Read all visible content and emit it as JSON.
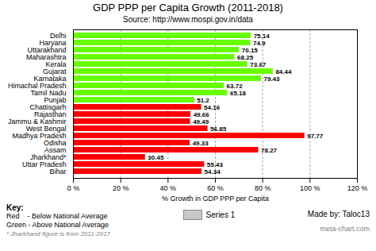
{
  "chart_data": {
    "type": "bar",
    "orientation": "horizontal",
    "title": "GDP PPP per Capita Growth (2011-2018)",
    "subtitle": "Source: http://www.mospi.gov.in/data",
    "xlabel": "% Growth in GDP PPP per Capita",
    "categories": [
      "Delhi",
      "Haryana",
      "Uttarakhand",
      "Maharashtra",
      "Kerala",
      "Gujarat",
      "Karnataka",
      "Himachal Pradesh",
      "Tamil Nadu",
      "Punjab",
      "Chattisgarh",
      "Rajasthan",
      "Jammu & Kashmir",
      "West Bengal",
      "Madhya Pradesh",
      "Odisha",
      "Assam",
      "Jharkhand*",
      "Uttar Pradesh",
      "Bihar"
    ],
    "series": [
      {
        "name": "Series 1",
        "color": "#c8c8c8",
        "colors": [
          "#66ff00",
          "#66ff00",
          "#66ff00",
          "#66ff00",
          "#66ff00",
          "#66ff00",
          "#66ff00",
          "#66ff00",
          "#66ff00",
          "#66ff00",
          "#ff0000",
          "#ff0000",
          "#ff0000",
          "#ff0000",
          "#ff0000",
          "#ff0000",
          "#ff0000",
          "#ff0000",
          "#ff0000",
          "#ff0000"
        ],
        "values": [
          75.14,
          74.9,
          70.15,
          68.25,
          73.67,
          84.44,
          79.43,
          63.72,
          65.18,
          51.2,
          54.16,
          49.66,
          49.49,
          56.85,
          97.77,
          49.33,
          78.27,
          30.45,
          55.43,
          54.34
        ]
      }
    ],
    "xlim": [
      0,
      120
    ],
    "xticks": [
      {
        "value": 0,
        "label": "0 %"
      },
      {
        "value": 20,
        "label": "20 %"
      },
      {
        "value": 40,
        "label": "40 %"
      },
      {
        "value": 60,
        "label": "60 %"
      },
      {
        "value": 80,
        "label": "80 %"
      },
      {
        "value": 100,
        "label": "100 %"
      },
      {
        "value": 120,
        "label": "120 %"
      }
    ],
    "grid": true,
    "data_labels": true,
    "legend": "bottom",
    "annotations": [
      "Key:",
      "Red    - Below National Average",
      "Green - Above National Average",
      "* Jharkhand figure is from 2011-2017",
      "Made by: Taloc13",
      "meta-chart.com"
    ]
  }
}
